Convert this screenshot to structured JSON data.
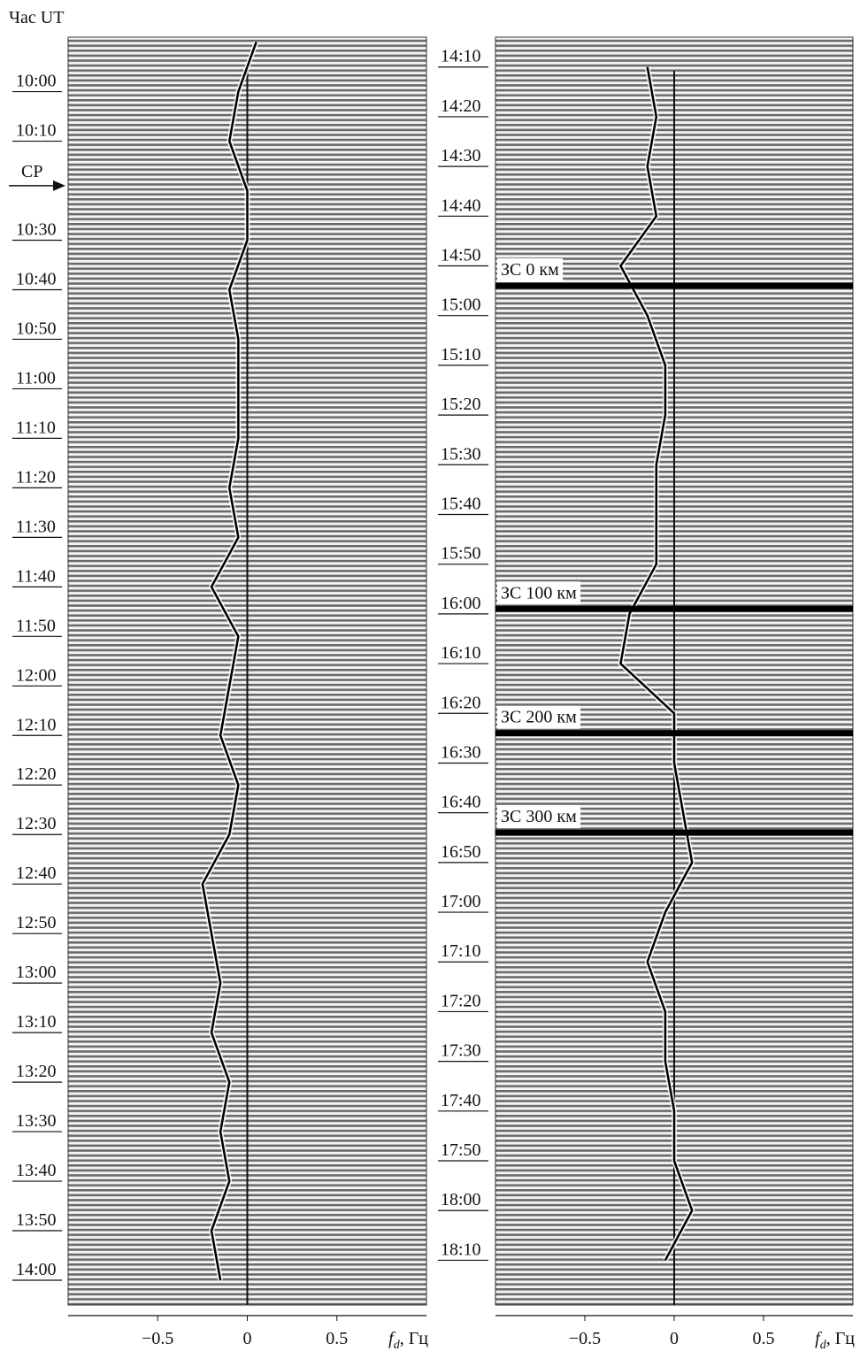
{
  "chart_data": [
    {
      "type": "waterfall",
      "ylabel": "Час UT",
      "xlabel_symbol": "f",
      "xlabel_sub": "d",
      "xlabel_unit": ", Гц",
      "xlim": [
        -1,
        1
      ],
      "xticks": [
        {
          "value": -0.5,
          "label": "−0.5"
        },
        0,
        0.5
      ],
      "ylim": [
        589,
        845
      ],
      "yticks": [
        {
          "value": 600,
          "label": "10:00"
        },
        {
          "value": 610,
          "label": "10:10"
        },
        {
          "value": 630,
          "label": "10:30"
        },
        {
          "value": 640,
          "label": "10:40"
        },
        {
          "value": 650,
          "label": "10:50"
        },
        {
          "value": 660,
          "label": "11:00"
        },
        {
          "value": 670,
          "label": "11:10"
        },
        {
          "value": 680,
          "label": "11:20"
        },
        {
          "value": 690,
          "label": "11:30"
        },
        {
          "value": 700,
          "label": "11:40"
        },
        {
          "value": 710,
          "label": "11:50"
        },
        {
          "value": 720,
          "label": "12:00"
        },
        {
          "value": 730,
          "label": "12:10"
        },
        {
          "value": 740,
          "label": "12:20"
        },
        {
          "value": 750,
          "label": "12:30"
        },
        {
          "value": 760,
          "label": "12:40"
        },
        {
          "value": 770,
          "label": "12:50"
        },
        {
          "value": 780,
          "label": "13:00"
        },
        {
          "value": 790,
          "label": "13:10"
        },
        {
          "value": 800,
          "label": "13:20"
        },
        {
          "value": 810,
          "label": "13:30"
        },
        {
          "value": 820,
          "label": "13:40"
        },
        {
          "value": 830,
          "label": "13:50"
        },
        {
          "value": 840,
          "label": "14:00"
        }
      ],
      "arrow_annotation": {
        "text": "СР",
        "y": 619
      },
      "peak": {
        "times": [
          590,
          600,
          610,
          620,
          630,
          640,
          650,
          660,
          670,
          680,
          690,
          700,
          710,
          720,
          730,
          740,
          750,
          760,
          770,
          780,
          790,
          800,
          810,
          820,
          830,
          840
        ],
        "values": [
          0.05,
          -0.05,
          -0.1,
          0,
          0,
          -0.1,
          -0.05,
          -0.05,
          -0.05,
          -0.1,
          -0.05,
          -0.2,
          -0.05,
          -0.1,
          -0.15,
          -0.05,
          -0.1,
          -0.25,
          -0.2,
          -0.15,
          -0.2,
          -0.1,
          -0.15,
          -0.1,
          -0.2,
          -0.15
        ]
      }
    },
    {
      "type": "waterfall",
      "xlabel_symbol": "f",
      "xlabel_sub": "d",
      "xlabel_unit": ", Гц",
      "xlim": [
        -1,
        1
      ],
      "xticks": [
        {
          "value": -0.5,
          "label": "−0.5"
        },
        0,
        0.5
      ],
      "ylim": [
        844,
        1099
      ],
      "yticks": [
        {
          "value": 850,
          "label": "14:10"
        },
        {
          "value": 860,
          "label": "14:20"
        },
        {
          "value": 870,
          "label": "14:30"
        },
        {
          "value": 880,
          "label": "14:40"
        },
        {
          "value": 890,
          "label": "14:50"
        },
        {
          "value": 900,
          "label": "15:00"
        },
        {
          "value": 910,
          "label": "15:10"
        },
        {
          "value": 920,
          "label": "15:20"
        },
        {
          "value": 930,
          "label": "15:30"
        },
        {
          "value": 940,
          "label": "15:40"
        },
        {
          "value": 950,
          "label": "15:50"
        },
        {
          "value": 960,
          "label": "16:00"
        },
        {
          "value": 970,
          "label": "16:10"
        },
        {
          "value": 980,
          "label": "16:20"
        },
        {
          "value": 990,
          "label": "16:30"
        },
        {
          "value": 1000,
          "label": "16:40"
        },
        {
          "value": 1010,
          "label": "16:50"
        },
        {
          "value": 1020,
          "label": "17:00"
        },
        {
          "value": 1030,
          "label": "17:10"
        },
        {
          "value": 1040,
          "label": "17:20"
        },
        {
          "value": 1050,
          "label": "17:30"
        },
        {
          "value": 1060,
          "label": "17:40"
        },
        {
          "value": 1070,
          "label": "17:50"
        },
        {
          "value": 1080,
          "label": "18:00"
        },
        {
          "value": 1090,
          "label": "18:10"
        }
      ],
      "line_annotations": [
        {
          "text": "ЗС 0 км",
          "y": 894
        },
        {
          "text": "ЗС 100 км",
          "y": 959
        },
        {
          "text": "ЗС 200 км",
          "y": 984
        },
        {
          "text": "ЗС 300 км",
          "y": 1004
        }
      ],
      "peak": {
        "times": [
          850,
          860,
          870,
          880,
          890,
          900,
          910,
          920,
          930,
          940,
          950,
          960,
          970,
          980,
          990,
          1000,
          1010,
          1020,
          1030,
          1040,
          1050,
          1060,
          1070,
          1080,
          1090
        ],
        "values": [
          -0.15,
          -0.1,
          -0.15,
          -0.1,
          -0.3,
          -0.15,
          -0.05,
          -0.05,
          -0.1,
          -0.1,
          -0.1,
          -0.25,
          -0.3,
          0,
          0,
          0.05,
          0.1,
          -0.05,
          -0.15,
          -0.05,
          -0.05,
          0,
          0,
          0.1,
          -0.05
        ]
      }
    }
  ]
}
